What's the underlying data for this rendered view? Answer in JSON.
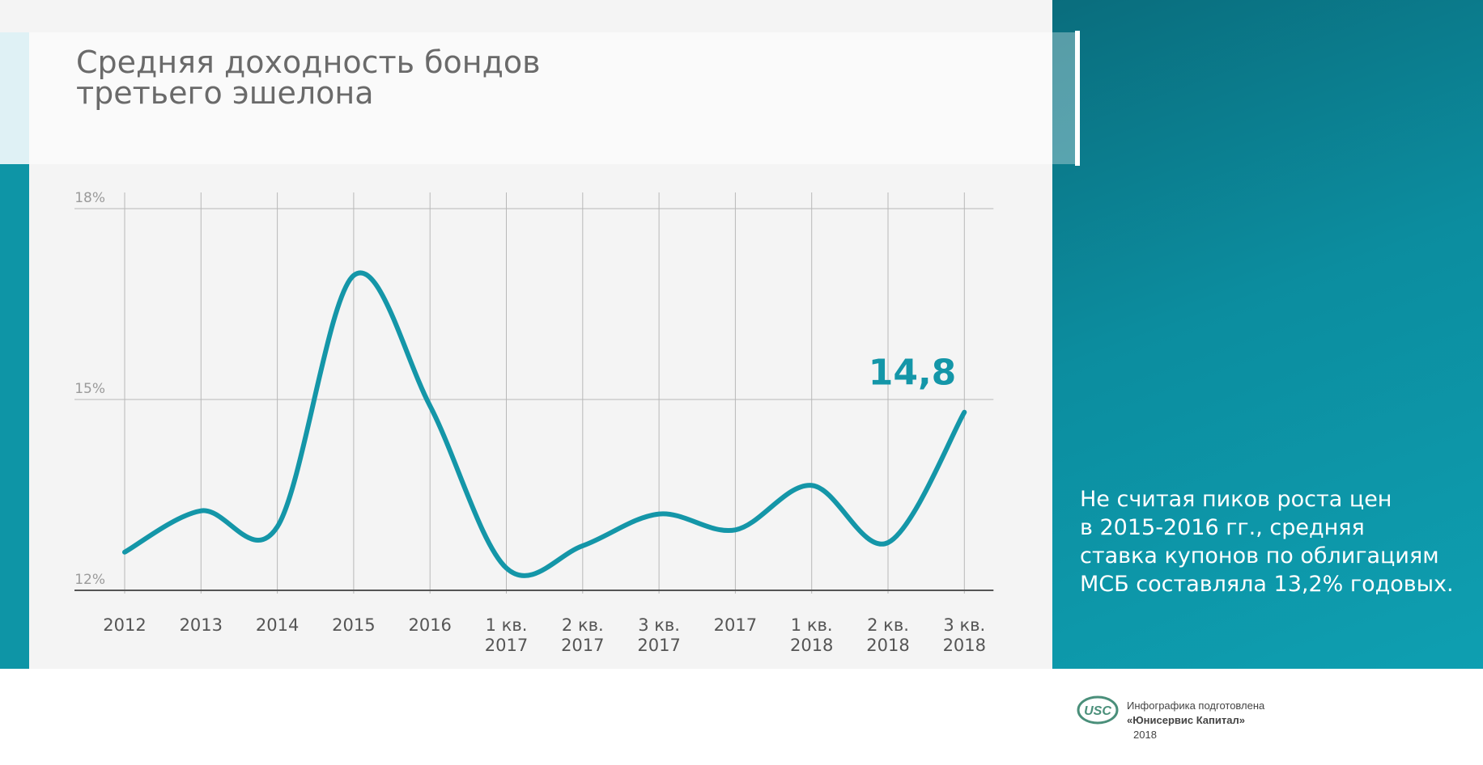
{
  "title_lines": [
    "Средняя доходность бондов",
    "третьего эшелона"
  ],
  "annotation_lines": [
    "Не считая пиков роста цен",
    "в 2015-2016 гг., средняя",
    "ставка купонов по облигациям",
    "МСБ составляла 13,2% годовых."
  ],
  "credit": {
    "logo_text": "USC",
    "line1": "Инфографика подготовлена",
    "company": "«Юнисервис Капитал»",
    "year": "2018"
  },
  "colors": {
    "line": "#1496a8",
    "right_panel": "#0e95a6",
    "title_text": "#6a6a6a",
    "grid": "#b8b8b8"
  },
  "chart_data": {
    "type": "line",
    "categories": [
      [
        "2012"
      ],
      [
        "2013"
      ],
      [
        "2014"
      ],
      [
        "2015"
      ],
      [
        "2016"
      ],
      [
        "1 кв.",
        "2017"
      ],
      [
        "2 кв.",
        "2017"
      ],
      [
        "3 кв.",
        "2017"
      ],
      [
        "2017"
      ],
      [
        "1 кв.",
        "2018"
      ],
      [
        "2 кв.",
        "2018"
      ],
      [
        "3 кв.",
        "2018"
      ]
    ],
    "values": [
      12.6,
      13.25,
      13.0,
      16.95,
      14.9,
      12.35,
      12.7,
      13.2,
      12.95,
      13.65,
      12.75,
      14.8
    ],
    "yticks": [
      "12%",
      "15%",
      "18%"
    ],
    "ylim": [
      12,
      18
    ],
    "grid": true,
    "callout": {
      "label": "14,8",
      "index": 11
    }
  }
}
